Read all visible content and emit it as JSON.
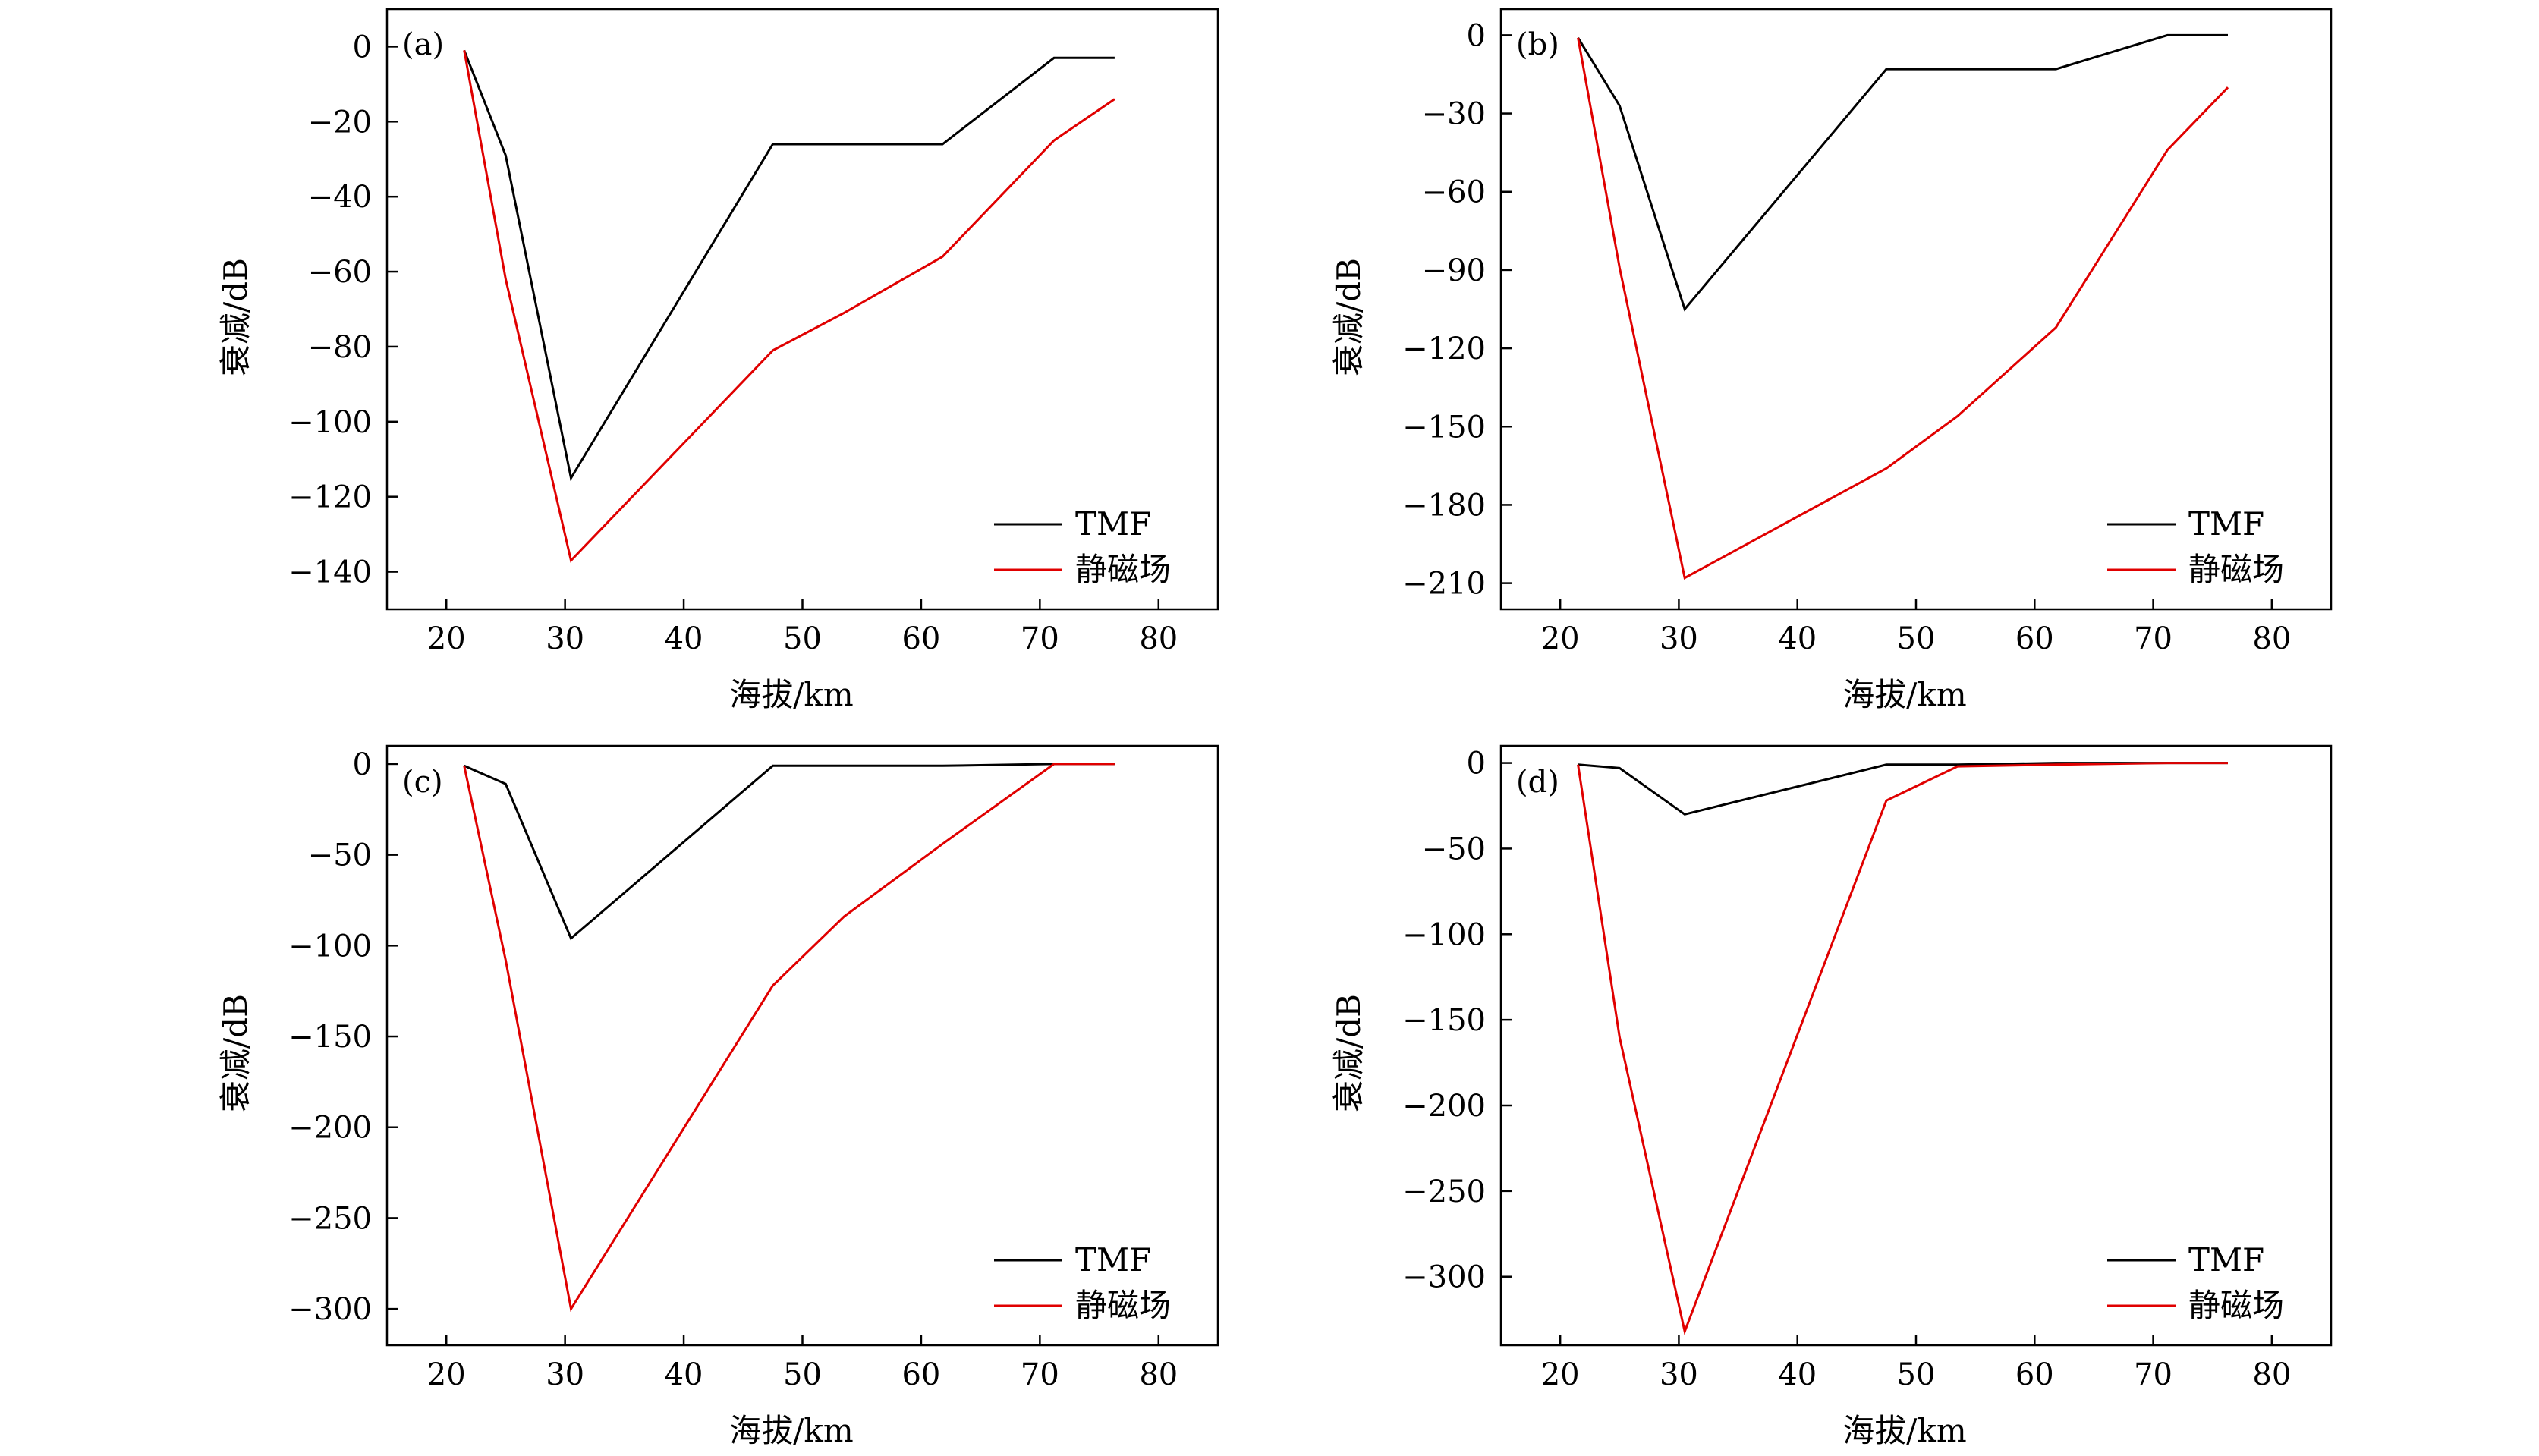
{
  "figure": {
    "series_styles": [
      {
        "name": "TMF",
        "color": "#000000"
      },
      {
        "name": "静磁场",
        "color": "#e00000"
      }
    ]
  },
  "chart_data": [
    {
      "type": "line",
      "panel_label": "(a)",
      "xlabel": "海拔/km",
      "ylabel": "衰减/dB",
      "xlim": [
        15,
        85
      ],
      "ylim": [
        -150,
        10
      ],
      "xticks": [
        20,
        30,
        40,
        50,
        60,
        70,
        80
      ],
      "xtick_labels": [
        "20",
        "30",
        "40",
        "50",
        "60",
        "70",
        "80"
      ],
      "yticks": [
        0,
        -20,
        -40,
        -60,
        -80,
        -100,
        -120,
        -140
      ],
      "ytick_labels": [
        "0",
        "−20",
        "−40",
        "−60",
        "−80",
        "−100",
        "−120",
        "−140"
      ],
      "grid": false,
      "legend_position": "bottom-right",
      "series": [
        {
          "name": "TMF",
          "color": "#000000",
          "x": [
            21.5,
            25.0,
            30.5,
            47.5,
            53.5,
            61.8,
            71.2,
            76.3
          ],
          "y": [
            -1,
            -29,
            -115,
            -26,
            -26,
            -26,
            -3,
            -3
          ]
        },
        {
          "name": "静磁场",
          "color": "#e00000",
          "x": [
            21.5,
            25.0,
            30.5,
            47.5,
            53.5,
            61.8,
            71.2,
            76.3
          ],
          "y": [
            -1,
            -62,
            -137,
            -81,
            -71,
            -56,
            -25,
            -14
          ]
        }
      ]
    },
    {
      "type": "line",
      "panel_label": "(b)",
      "xlabel": "海拔/km",
      "ylabel": "衰减/dB",
      "xlim": [
        15,
        85
      ],
      "ylim": [
        -220,
        10
      ],
      "xticks": [
        20,
        30,
        40,
        50,
        60,
        70,
        80
      ],
      "xtick_labels": [
        "20",
        "30",
        "40",
        "50",
        "60",
        "70",
        "80"
      ],
      "yticks": [
        0,
        -30,
        -60,
        -90,
        -120,
        -150,
        -180,
        -210
      ],
      "ytick_labels": [
        "0",
        "−30",
        "−60",
        "−90",
        "−120",
        "−150",
        "−180",
        "−210"
      ],
      "grid": false,
      "legend_position": "bottom-right",
      "series": [
        {
          "name": "TMF",
          "color": "#000000",
          "x": [
            21.5,
            25.0,
            30.5,
            47.5,
            53.5,
            61.8,
            71.2,
            76.3
          ],
          "y": [
            -1,
            -27,
            -105,
            -13,
            -13,
            -13,
            0,
            0
          ]
        },
        {
          "name": "静磁场",
          "color": "#e00000",
          "x": [
            21.5,
            25.0,
            30.5,
            47.5,
            53.5,
            61.8,
            71.2,
            76.3
          ],
          "y": [
            -1,
            -89,
            -208,
            -166,
            -146,
            -112,
            -44,
            -20
          ]
        }
      ]
    },
    {
      "type": "line",
      "panel_label": "(c)",
      "xlabel": "海拔/km",
      "ylabel": "衰减/dB",
      "xlim": [
        15,
        85
      ],
      "ylim": [
        -320,
        10
      ],
      "xticks": [
        20,
        30,
        40,
        50,
        60,
        70,
        80
      ],
      "xtick_labels": [
        "20",
        "30",
        "40",
        "50",
        "60",
        "70",
        "80"
      ],
      "yticks": [
        0,
        -50,
        -100,
        -150,
        -200,
        -250,
        -300
      ],
      "ytick_labels": [
        "0",
        "−50",
        "−100",
        "−150",
        "−200",
        "−250",
        "−300"
      ],
      "grid": false,
      "legend_position": "bottom-right",
      "series": [
        {
          "name": "TMF",
          "color": "#000000",
          "x": [
            21.5,
            25.0,
            30.5,
            47.5,
            53.5,
            61.8,
            71.2,
            76.3
          ],
          "y": [
            -1,
            -11,
            -96,
            -1,
            -1,
            -1,
            0,
            0
          ]
        },
        {
          "name": "静磁场",
          "color": "#e00000",
          "x": [
            21.5,
            25.0,
            30.5,
            47.5,
            53.5,
            61.8,
            71.2,
            76.3
          ],
          "y": [
            -1,
            -108,
            -300,
            -122,
            -84,
            -44,
            0,
            0
          ]
        }
      ]
    },
    {
      "type": "line",
      "panel_label": "(d)",
      "xlabel": "海拔/km",
      "ylabel": "衰减/dB",
      "xlim": [
        15,
        85
      ],
      "ylim": [
        -340,
        10
      ],
      "xticks": [
        20,
        30,
        40,
        50,
        60,
        70,
        80
      ],
      "xtick_labels": [
        "20",
        "30",
        "40",
        "50",
        "60",
        "70",
        "80"
      ],
      "yticks": [
        0,
        -50,
        -100,
        -150,
        -200,
        -250,
        -300
      ],
      "ytick_labels": [
        "0",
        "−50",
        "−100",
        "−150",
        "−200",
        "−250",
        "−300"
      ],
      "grid": false,
      "legend_position": "bottom-right",
      "series": [
        {
          "name": "TMF",
          "color": "#000000",
          "x": [
            21.5,
            25.0,
            30.5,
            47.5,
            53.5,
            61.8,
            71.2,
            76.3
          ],
          "y": [
            -1,
            -3,
            -30,
            -1,
            -1,
            0,
            0,
            0
          ]
        },
        {
          "name": "静磁场",
          "color": "#e00000",
          "x": [
            21.5,
            25.0,
            30.5,
            47.5,
            53.5,
            61.8,
            71.2,
            76.3
          ],
          "y": [
            -1,
            -160,
            -332,
            -22,
            -2,
            -1,
            0,
            0
          ]
        }
      ]
    }
  ]
}
